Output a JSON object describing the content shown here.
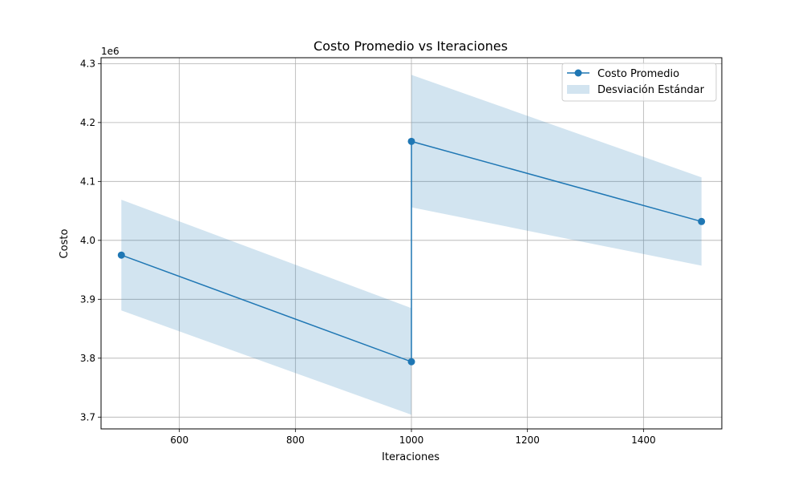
{
  "chart_data": {
    "type": "line",
    "title": "Costo Promedio vs Iteraciones",
    "xlabel": "Iteraciones",
    "ylabel": "Costo",
    "y_offset_label": "1e6",
    "xlim": [
      465,
      1535
    ],
    "ylim": [
      3.68,
      4.31
    ],
    "xticks": [
      600,
      800,
      1000,
      1200,
      1400
    ],
    "xtick_labels": [
      "600",
      "800",
      "1000",
      "1200",
      "1400"
    ],
    "yticks": [
      3.7,
      3.8,
      3.9,
      4.0,
      4.1,
      4.2,
      4.3
    ],
    "ytick_labels": [
      "3.7",
      "3.8",
      "3.9",
      "4.0",
      "4.1",
      "4.2",
      "4.3"
    ],
    "grid": true,
    "legend_position": "top-right",
    "x": [
      500,
      1000,
      1000,
      1500
    ],
    "series": [
      {
        "name": "Costo Promedio",
        "values": [
          3.975,
          3.794,
          4.168,
          4.032
        ],
        "color": "#1f77b4",
        "marker": "circle"
      }
    ],
    "band": {
      "name": "Desviación Estándar",
      "lower": [
        3.881,
        3.704,
        4.056,
        3.957
      ],
      "upper": [
        4.069,
        3.885,
        4.281,
        4.107
      ],
      "color": "#1f77b4",
      "alpha": 0.2
    }
  }
}
